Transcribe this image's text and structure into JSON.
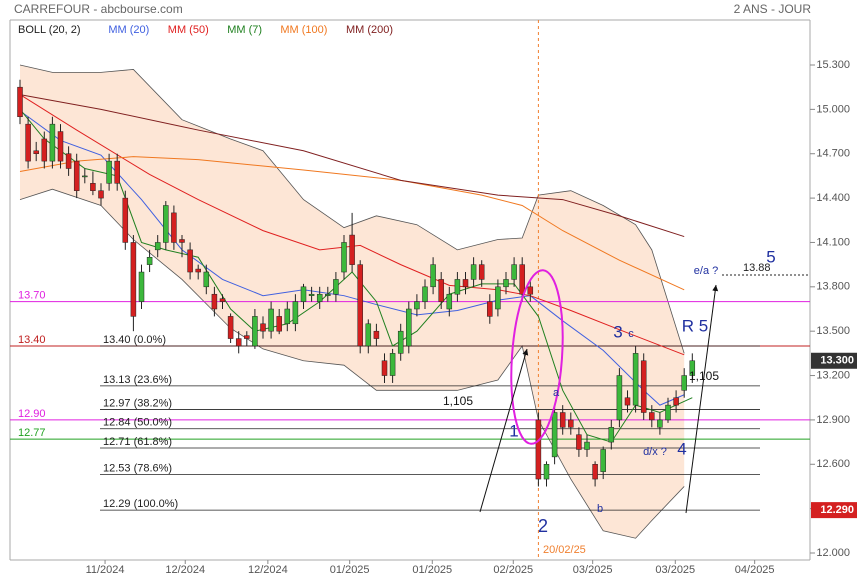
{
  "header": {
    "title": "CARREFOUR - abcbourse.com",
    "period": "2 ANS - JOUR"
  },
  "chart_data": {
    "type": "candlestick",
    "legend": [
      "BOLL (20, 2)"
    ],
    "open": [
      15.15,
      14.9,
      14.72,
      14.8,
      14.65,
      14.85,
      14.7,
      14.65,
      14.55,
      14.5,
      14.45,
      14.5,
      14.65,
      14.4,
      14.1,
      13.7,
      13.95,
      14.05,
      14.1,
      14.3,
      14.12,
      14.05,
      13.92,
      13.8,
      13.75,
      13.72,
      13.6,
      13.45,
      13.47,
      13.4,
      13.55,
      13.5,
      13.6,
      13.55,
      13.55,
      13.7,
      13.74,
      13.7,
      13.74,
      13.75,
      13.9,
      14.15,
      13.95,
      13.4,
      13.5,
      13.3,
      13.2,
      13.35,
      13.4,
      13.65,
      13.7,
      13.8,
      13.85,
      13.65,
      13.75,
      13.85,
      13.85,
      13.95,
      13.7,
      13.65,
      13.8,
      13.85,
      13.95,
      13.8,
      12.9,
      12.5,
      12.65,
      12.95,
      12.9,
      12.8,
      12.7,
      12.6,
      12.55,
      12.75,
      12.9,
      13.05,
      13.0,
      13.3,
      12.95,
      12.85,
      12.9,
      13.05,
      13.1,
      13.2
    ],
    "high": [
      15.2,
      14.95,
      14.78,
      14.85,
      14.95,
      14.9,
      14.75,
      14.7,
      14.6,
      14.58,
      14.5,
      14.7,
      14.7,
      14.45,
      14.15,
      13.95,
      14.05,
      14.15,
      14.38,
      14.35,
      14.15,
      14.1,
      13.95,
      13.95,
      13.8,
      13.75,
      13.62,
      13.5,
      13.5,
      13.65,
      13.6,
      13.7,
      13.65,
      13.7,
      13.75,
      13.82,
      13.8,
      13.8,
      13.8,
      13.9,
      14.15,
      14.3,
      13.98,
      13.58,
      13.55,
      13.35,
      13.38,
      13.55,
      13.7,
      13.75,
      13.85,
      14.0,
      13.9,
      13.8,
      13.9,
      13.9,
      14.0,
      13.98,
      13.75,
      13.85,
      13.9,
      14.0,
      14.0,
      13.85,
      12.95,
      12.62,
      13.0,
      13.0,
      12.95,
      12.85,
      12.8,
      12.62,
      12.72,
      12.9,
      13.25,
      13.1,
      13.4,
      13.35,
      13.0,
      12.95,
      13.05,
      13.1,
      13.25,
      13.35
    ],
    "low": [
      14.9,
      14.6,
      14.65,
      14.6,
      14.6,
      14.6,
      14.55,
      14.4,
      14.5,
      14.42,
      14.35,
      14.45,
      14.45,
      14.05,
      13.5,
      13.65,
      13.9,
      14.0,
      14.05,
      14.05,
      14.0,
      13.85,
      13.85,
      13.75,
      13.6,
      13.65,
      13.42,
      13.35,
      13.4,
      13.38,
      13.45,
      13.45,
      13.48,
      13.5,
      13.5,
      13.65,
      13.7,
      13.65,
      13.7,
      13.7,
      13.85,
      13.9,
      13.35,
      13.35,
      13.4,
      13.15,
      13.15,
      13.3,
      13.35,
      13.6,
      13.65,
      13.75,
      13.65,
      13.6,
      13.7,
      13.75,
      13.8,
      13.8,
      13.55,
      13.6,
      13.75,
      13.8,
      13.7,
      13.7,
      12.45,
      12.45,
      12.6,
      12.8,
      12.8,
      12.65,
      12.65,
      12.45,
      12.5,
      12.7,
      12.85,
      12.95,
      12.95,
      12.9,
      12.85,
      12.8,
      12.88,
      12.95,
      13.05,
      13.15
    ],
    "close": [
      14.95,
      14.65,
      14.7,
      14.65,
      14.9,
      14.65,
      14.6,
      14.45,
      14.55,
      14.45,
      14.4,
      14.65,
      14.5,
      14.1,
      13.6,
      13.9,
      14.0,
      14.1,
      14.35,
      14.1,
      14.1,
      13.9,
      13.9,
      13.9,
      13.65,
      13.7,
      13.45,
      13.4,
      13.45,
      13.6,
      13.5,
      13.65,
      13.5,
      13.65,
      13.7,
      13.8,
      13.75,
      13.75,
      13.75,
      13.85,
      14.1,
      13.95,
      13.4,
      13.55,
      13.45,
      13.2,
      13.35,
      13.5,
      13.65,
      13.7,
      13.8,
      13.95,
      13.7,
      13.75,
      13.85,
      13.8,
      13.95,
      13.85,
      13.6,
      13.8,
      13.85,
      13.95,
      13.75,
      13.75,
      12.5,
      12.6,
      12.95,
      12.85,
      12.85,
      12.7,
      12.75,
      12.5,
      12.7,
      12.85,
      13.2,
      13.0,
      13.35,
      12.95,
      12.9,
      12.9,
      13.0,
      13.0,
      13.2,
      13.3
    ],
    "up_color": "#3cb83c",
    "down_color": "#d42020",
    "bands": {
      "name": "BOLL (20, 2)",
      "fill": "#fde6d6",
      "line": "#555555",
      "x": [
        0,
        4,
        10,
        14,
        20,
        26,
        30,
        35,
        40,
        44,
        49,
        54,
        59,
        62,
        64,
        68,
        72,
        76,
        78,
        82
      ],
      "upper": [
        15.3,
        15.25,
        15.25,
        15.27,
        14.93,
        14.8,
        14.72,
        14.39,
        14.2,
        14.28,
        14.22,
        14.05,
        14.12,
        14.13,
        14.42,
        14.45,
        14.35,
        14.22,
        14.05,
        13.35
      ],
      "lower": [
        14.39,
        14.46,
        14.35,
        14.12,
        13.85,
        13.52,
        13.38,
        13.3,
        13.27,
        13.1,
        13.1,
        13.1,
        13.17,
        13.4,
        12.9,
        12.5,
        12.15,
        12.1,
        12.22,
        12.45
      ]
    },
    "series": [
      {
        "name": "MM (20)",
        "color": "#4060e0",
        "x": [
          0,
          5,
          10,
          15,
          20,
          25,
          30,
          35,
          40,
          44,
          49,
          54,
          59,
          63,
          67,
          72,
          77,
          79,
          82
        ],
        "values": [
          14.99,
          14.79,
          14.69,
          14.39,
          14.05,
          13.85,
          13.74,
          13.78,
          13.74,
          13.68,
          13.61,
          13.64,
          13.71,
          13.74,
          13.57,
          13.37,
          13.1,
          13.0,
          13.07
        ]
      },
      {
        "name": "MM (50)",
        "color": "#e02020",
        "x": [
          0,
          7,
          16,
          22,
          30,
          37,
          42,
          47,
          53,
          59,
          63,
          68,
          74,
          82
        ],
        "values": [
          15.1,
          14.86,
          14.56,
          14.39,
          14.18,
          14.05,
          14.08,
          13.95,
          13.81,
          13.78,
          13.74,
          13.64,
          13.51,
          13.34
        ]
      },
      {
        "name": "MM (7)",
        "color": "#208020",
        "x": [
          0,
          3,
          8,
          12,
          15,
          18,
          22,
          26,
          29,
          33,
          37,
          41,
          44,
          46,
          49,
          53,
          57,
          61,
          64,
          67,
          70,
          73,
          76,
          79,
          83
        ],
        "values": [
          15.0,
          14.8,
          14.6,
          14.55,
          14.1,
          14.05,
          14.0,
          13.65,
          13.5,
          13.55,
          13.7,
          13.9,
          13.7,
          13.4,
          13.5,
          13.75,
          13.82,
          13.82,
          13.6,
          13.1,
          12.8,
          12.75,
          13.0,
          12.95,
          13.05
        ]
      },
      {
        "name": "MM (100)",
        "color": "#f07820",
        "x": [
          0,
          7,
          14,
          22,
          35,
          47,
          57,
          62,
          67,
          74,
          82
        ],
        "values": [
          14.58,
          14.65,
          14.68,
          14.66,
          14.59,
          14.52,
          14.42,
          14.35,
          14.18,
          13.98,
          13.78
        ]
      },
      {
        "name": "MM (200)",
        "color": "#802020",
        "x": [
          0,
          10,
          22,
          35,
          47,
          59,
          67,
          74,
          82
        ],
        "values": [
          15.1,
          15.0,
          14.86,
          14.72,
          14.52,
          14.42,
          14.39,
          14.28,
          14.14
        ]
      }
    ],
    "ylim": [
      12.0,
      15.3
    ],
    "yticks": [
      {
        "value": 15.3,
        "label": "15.300"
      },
      {
        "value": 15.0,
        "label": "15.000"
      },
      {
        "value": 14.7,
        "label": "14.700"
      },
      {
        "value": 14.4,
        "label": "14.400"
      },
      {
        "value": 14.1,
        "label": "14.100"
      },
      {
        "value": 13.8,
        "label": "13.800"
      },
      {
        "value": 13.5,
        "label": "13.500"
      },
      {
        "value": 13.2,
        "label": "13.200"
      },
      {
        "value": 12.9,
        "label": "12.900"
      },
      {
        "value": 12.6,
        "label": "12.600"
      },
      {
        "value": 12.3,
        "label": "12.300"
      },
      {
        "value": 12.0,
        "label": "12.000"
      }
    ],
    "xticks": [
      {
        "value": 10.5,
        "label": "11/2024"
      },
      {
        "value": 20.4,
        "label": "12/2024"
      },
      {
        "value": 30.6,
        "label": "12/2024"
      },
      {
        "value": 40.7,
        "label": "01/2025"
      },
      {
        "value": 50.9,
        "label": "01/2025"
      },
      {
        "value": 60.9,
        "label": "02/2025"
      },
      {
        "value": 70.7,
        "label": "03/2025"
      },
      {
        "value": 80.9,
        "label": "03/2025"
      },
      {
        "value": 90.7,
        "label": "04/2025"
      }
    ],
    "price_badges": [
      {
        "value": 13.3,
        "label": "13.300",
        "color": "#333333"
      },
      {
        "value": 12.29,
        "label": "12.290",
        "color": "#d42020"
      }
    ],
    "hlines": [
      {
        "value": 13.7,
        "label": "13.70",
        "color": "#e020e0"
      },
      {
        "value": 13.4,
        "label": "13.40",
        "color": "#c02020"
      },
      {
        "value": 12.9,
        "label": "12.90",
        "color": "#e020e0"
      },
      {
        "value": 12.77,
        "label": "12.77",
        "color": "#20a020"
      }
    ],
    "fib_levels": [
      {
        "value": 13.4,
        "label": "13.40  (0.0%)"
      },
      {
        "value": 13.13,
        "label": "13.13  (23.6%)"
      },
      {
        "value": 12.97,
        "label": "12.97  (38.2%)"
      },
      {
        "value": 12.84,
        "label": "12.84  (50.0%)"
      },
      {
        "value": 12.71,
        "label": "12.71  (61.8%)"
      },
      {
        "value": 12.53,
        "label": "12.53  (78.6%)"
      },
      {
        "value": 12.29,
        "label": "12.29  (100.0%)"
      }
    ],
    "target": {
      "value": 13.88,
      "label": "13.88"
    },
    "event": {
      "x": 64,
      "label": "20/02/25"
    },
    "annotations": [
      "1,105",
      "1,105",
      "1",
      "2",
      "3",
      "c",
      "4",
      "5",
      "R 5",
      "a",
      "b",
      "d/x ?",
      "e/a ?"
    ]
  }
}
